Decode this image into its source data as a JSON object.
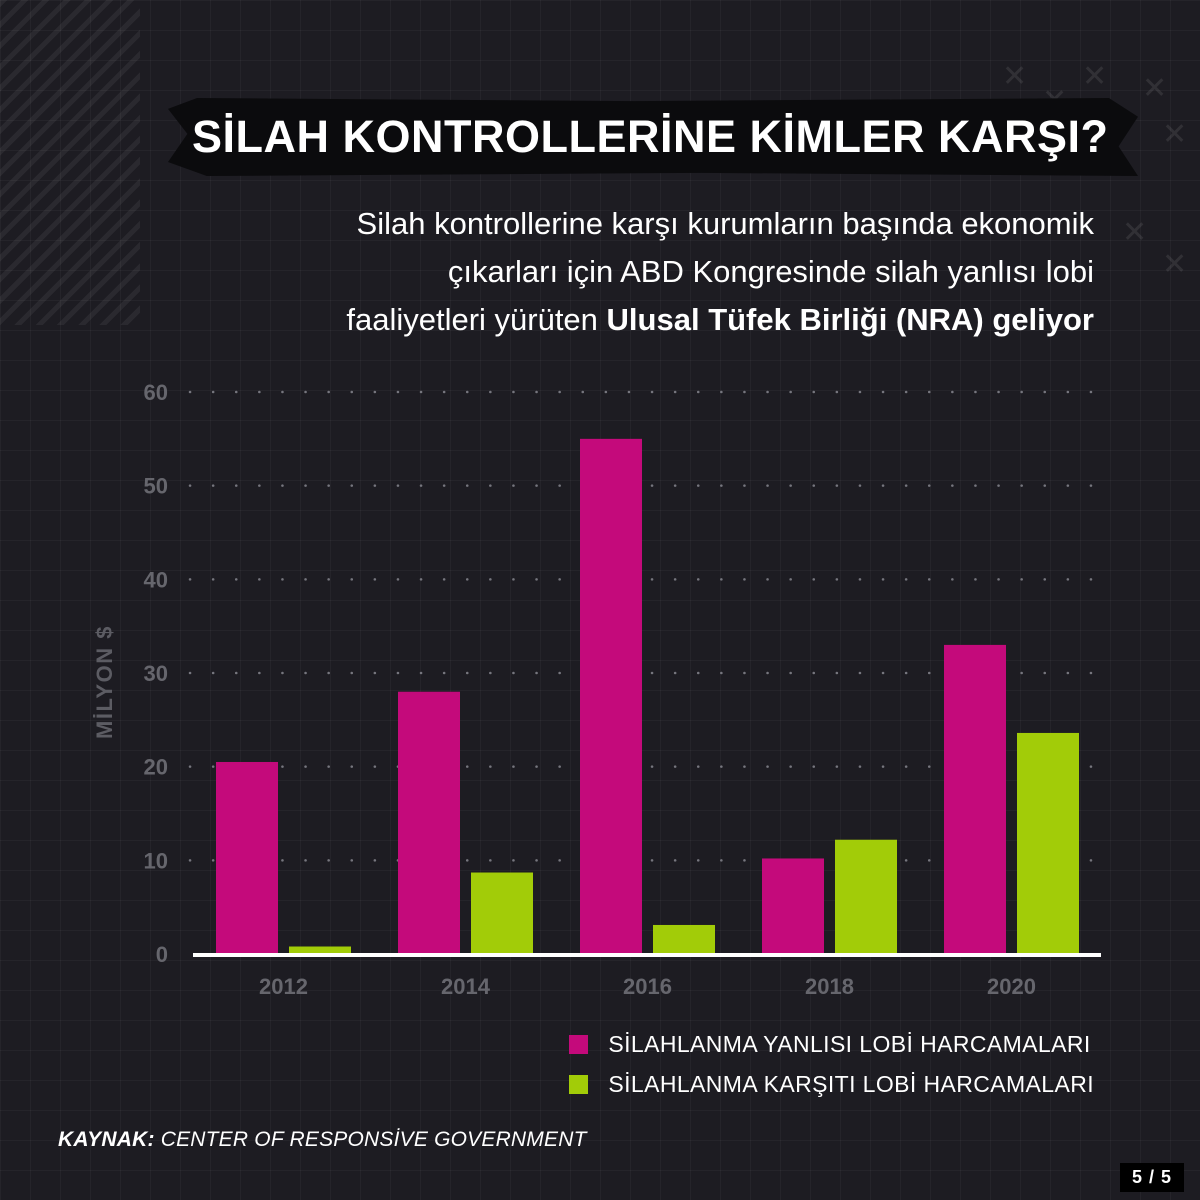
{
  "header": {
    "title": "SİLAH KONTROLLERİNE KİMLER KARŞI?",
    "subtitle_line1": "Silah kontrollerine karşı kurumların başında ekonomik",
    "subtitle_line2": "çıkarları için ABD Kongresinde silah yanlısı lobi",
    "subtitle_line3_plain": "faaliyetleri yürüten",
    "subtitle_line3_bold": "Ulusal Tüfek Birliği (NRA) geliyor"
  },
  "colors": {
    "pro_gun": "#c40a7b",
    "anti_gun": "#a2cc08",
    "background": "#1d1c22"
  },
  "chart_data": {
    "type": "bar",
    "categories": [
      "2012",
      "2014",
      "2016",
      "2018",
      "2020"
    ],
    "series": [
      {
        "name": "SİLAHLANMA YANLISI LOBİ HARCAMALARI",
        "values": [
          20.5,
          28,
          55,
          10.2,
          33
        ]
      },
      {
        "name": "SİLAHLANMA KARŞITI LOBİ HARCAMALARI",
        "values": [
          0.8,
          8.7,
          3.1,
          12.2,
          23.6
        ]
      }
    ],
    "ylabel": "MİLYON $",
    "xlabel": "",
    "ylim": [
      0,
      60
    ],
    "yticks": [
      0,
      10,
      20,
      30,
      40,
      50,
      60
    ],
    "grid": "dotted horizontal",
    "legend_position": "bottom-right"
  },
  "footer": {
    "source_label": "KAYNAK:",
    "source_text": "CENTER OF RESPONSİVE GOVERNMENT",
    "page": "5 / 5"
  }
}
